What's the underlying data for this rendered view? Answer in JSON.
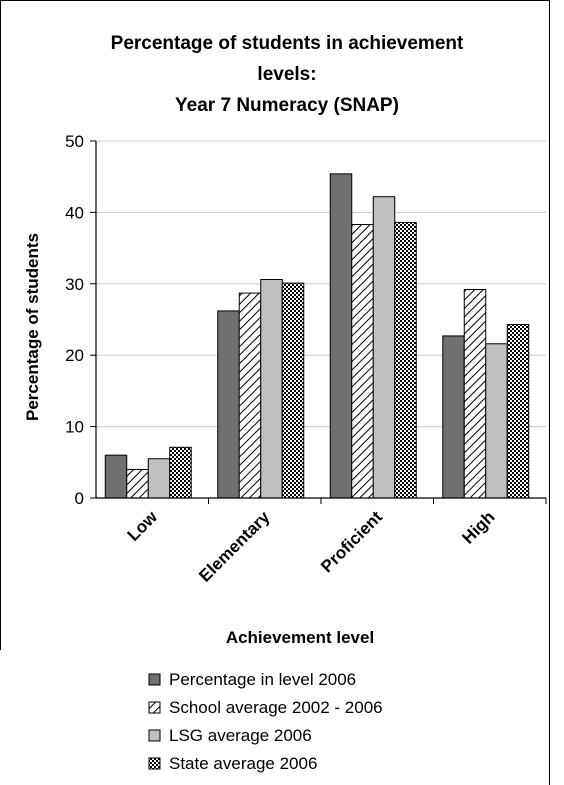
{
  "chart_data": {
    "type": "bar",
    "title_lines": [
      "Percentage of students in achievement",
      "levels:",
      "Year 7 Numeracy (SNAP)"
    ],
    "xlabel": "Achievement level",
    "ylabel": "Percentage of students",
    "categories": [
      "Low",
      "Elementary",
      "Proficient",
      "High"
    ],
    "ylim": [
      0,
      50
    ],
    "yticks": [
      0,
      10,
      20,
      30,
      40,
      50
    ],
    "grid": true,
    "legend_position": "bottom",
    "series": [
      {
        "name": "Percentage in level 2006",
        "values": [
          6.0,
          26.2,
          45.4,
          22.7
        ],
        "fill": "#707070",
        "pattern": "solid"
      },
      {
        "name": "School average 2002 - 2006",
        "values": [
          4.0,
          28.7,
          38.3,
          29.2
        ],
        "fill": "#ffffff",
        "pattern": "diagonal"
      },
      {
        "name": "LSG average 2006",
        "values": [
          5.5,
          30.6,
          42.2,
          21.6
        ],
        "fill": "#c0c0c0",
        "pattern": "solid"
      },
      {
        "name": "State average 2006",
        "values": [
          7.1,
          30.1,
          38.6,
          24.3
        ],
        "fill": "#ffffff",
        "pattern": "checker"
      }
    ]
  }
}
